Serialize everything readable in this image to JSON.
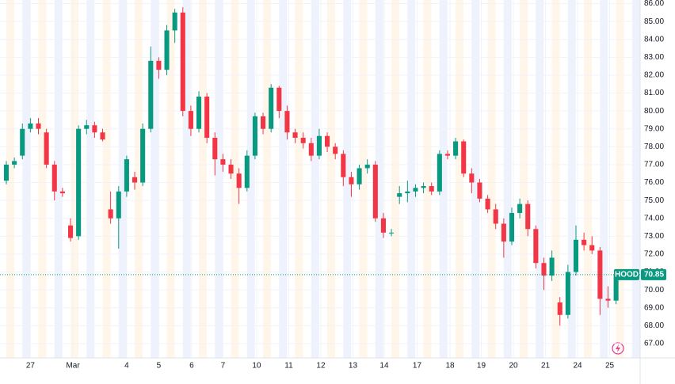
{
  "chart_data": {
    "type": "candlestick",
    "symbol": "HOOD",
    "last_price": {
      "value": 70.85,
      "label": "70.85"
    },
    "up_color": "#089981",
    "down_color": "#f23645",
    "x": [
      -3,
      -2,
      -1,
      0,
      1,
      2,
      3,
      4,
      5,
      6,
      7,
      8,
      9,
      10,
      11,
      12,
      13,
      14,
      15,
      16,
      17,
      18,
      19,
      20,
      21,
      22,
      23,
      24,
      25,
      26,
      27,
      28,
      29,
      30,
      31,
      32,
      33,
      34,
      35,
      36,
      37,
      38,
      39,
      40,
      41,
      42,
      43,
      44,
      45,
      46,
      47,
      48,
      49,
      50,
      51,
      52,
      53,
      54,
      55,
      56,
      57,
      58,
      59,
      60,
      61,
      62,
      63,
      64,
      65,
      66,
      67,
      68,
      69,
      70,
      71,
      72,
      73
    ],
    "open": [
      76.1,
      77.0,
      77.5,
      79.0,
      79.3,
      78.8,
      77.0,
      75.5,
      73.6,
      73.0,
      79.0,
      79.2,
      78.8,
      74.5,
      74.0,
      75.5,
      76.3,
      76.0,
      79.0,
      82.8,
      82.3,
      84.5,
      85.5,
      80.0,
      79.0,
      80.8,
      78.5,
      77.3,
      77.0,
      76.5,
      75.7,
      77.5,
      79.7,
      79.0,
      81.3,
      80.0,
      78.8,
      78.5,
      78.2,
      77.5,
      78.6,
      78.0,
      77.6,
      76.3,
      75.9,
      76.8,
      77.0,
      74.0,
      73.2,
      75.2,
      75.4,
      75.5,
      75.7,
      75.8,
      75.5,
      77.6,
      77.5,
      78.3,
      76.5,
      76.0,
      75.1,
      74.5,
      73.7,
      72.7,
      74.3,
      74.8,
      73.4,
      71.5,
      70.8,
      69.3,
      68.6,
      71.0,
      72.8,
      72.5,
      72.2,
      69.5,
      69.4
    ],
    "high": [
      77.2,
      77.4,
      79.3,
      79.6,
      79.6,
      79.0,
      77.2,
      75.7,
      74.0,
      79.2,
      79.5,
      79.4,
      79.0,
      75.5,
      75.8,
      77.5,
      76.6,
      79.3,
      83.6,
      83.0,
      84.8,
      85.7,
      85.8,
      80.3,
      81.1,
      81.0,
      78.8,
      77.6,
      77.3,
      76.8,
      77.8,
      79.9,
      79.9,
      81.5,
      81.4,
      80.3,
      79.0,
      78.8,
      78.5,
      79.0,
      78.8,
      78.2,
      77.8,
      76.6,
      77.0,
      77.3,
      77.2,
      74.3,
      73.4,
      75.8,
      76.1,
      75.9,
      76.0,
      76.0,
      77.8,
      77.8,
      78.5,
      78.4,
      76.8,
      76.2,
      75.3,
      74.8,
      74.0,
      74.6,
      75.1,
      75.0,
      73.6,
      71.8,
      72.2,
      69.6,
      71.4,
      73.6,
      73.2,
      73.0,
      72.4,
      70.2,
      71.0
    ],
    "low": [
      75.9,
      76.8,
      77.3,
      78.8,
      78.7,
      76.8,
      75.0,
      75.2,
      72.7,
      72.8,
      78.7,
      78.5,
      78.3,
      73.7,
      72.3,
      75.2,
      75.6,
      75.8,
      78.8,
      81.8,
      82.0,
      83.8,
      79.7,
      78.6,
      78.8,
      78.2,
      76.4,
      76.6,
      76.2,
      74.8,
      75.5,
      77.3,
      78.7,
      78.8,
      79.6,
      78.4,
      78.2,
      77.9,
      77.2,
      77.3,
      77.7,
      77.3,
      75.8,
      75.2,
      75.6,
      76.5,
      73.8,
      72.9,
      73.0,
      74.8,
      74.9,
      75.2,
      75.4,
      75.3,
      75.3,
      77.3,
      77.3,
      76.3,
      75.4,
      74.9,
      74.3,
      73.4,
      71.8,
      72.5,
      74.0,
      73.0,
      71.2,
      70.0,
      70.5,
      68.0,
      68.4,
      70.8,
      72.2,
      72.0,
      68.6,
      69.0,
      69.2
    ],
    "close": [
      77.0,
      77.2,
      79.0,
      79.3,
      79.0,
      77.0,
      75.5,
      75.4,
      72.9,
      79.0,
      79.2,
      78.8,
      78.4,
      74.0,
      75.5,
      77.3,
      76.0,
      79.0,
      82.8,
      82.3,
      84.5,
      85.5,
      80.0,
      79.0,
      80.8,
      78.5,
      77.3,
      77.0,
      76.5,
      75.7,
      77.5,
      79.7,
      79.0,
      81.3,
      80.0,
      78.8,
      78.5,
      78.2,
      77.5,
      78.6,
      78.0,
      77.6,
      76.3,
      75.9,
      76.8,
      77.0,
      74.0,
      73.2,
      73.2,
      75.4,
      75.5,
      75.7,
      75.8,
      75.5,
      77.6,
      77.5,
      78.3,
      76.5,
      76.0,
      75.1,
      74.5,
      73.7,
      72.7,
      74.3,
      74.8,
      73.4,
      71.5,
      70.8,
      71.8,
      68.6,
      71.0,
      72.8,
      72.5,
      72.2,
      69.5,
      69.4,
      70.85
    ],
    "xlim": [
      -3,
      76
    ],
    "xticks": [
      {
        "value": 0,
        "label": "27"
      },
      {
        "value": 5.3,
        "label": "Mar"
      },
      {
        "value": 12,
        "label": "4"
      },
      {
        "value": 16,
        "label": "5"
      },
      {
        "value": 20.1,
        "label": "6"
      },
      {
        "value": 24,
        "label": "7"
      },
      {
        "value": 28.2,
        "label": "10"
      },
      {
        "value": 32.2,
        "label": "11"
      },
      {
        "value": 36.2,
        "label": "12"
      },
      {
        "value": 40.2,
        "label": "13"
      },
      {
        "value": 44.1,
        "label": "14"
      },
      {
        "value": 48.2,
        "label": "17"
      },
      {
        "value": 52.3,
        "label": "18"
      },
      {
        "value": 56.2,
        "label": "19"
      },
      {
        "value": 60.2,
        "label": "20"
      },
      {
        "value": 64.2,
        "label": "21"
      },
      {
        "value": 68.2,
        "label": "24"
      },
      {
        "value": 72.2,
        "label": "25"
      }
    ],
    "ylim": [
      66.2,
      86.2
    ],
    "yticks": [
      {
        "value": 67,
        "label": "67.00"
      },
      {
        "value": 68,
        "label": "68.00"
      },
      {
        "value": 69,
        "label": "69.00"
      },
      {
        "value": 70,
        "label": "70.00"
      },
      {
        "value": 71,
        "label": "71.00"
      },
      {
        "value": 72,
        "label": "72.00"
      },
      {
        "value": 73,
        "label": "73.00"
      },
      {
        "value": 74,
        "label": "74.00"
      },
      {
        "value": 75,
        "label": "75.00"
      },
      {
        "value": 76,
        "label": "76.00"
      },
      {
        "value": 77,
        "label": "77.00"
      },
      {
        "value": 78,
        "label": "78.00"
      },
      {
        "value": 79,
        "label": "79.00"
      },
      {
        "value": 80,
        "label": "80.00"
      },
      {
        "value": 81,
        "label": "81.00"
      },
      {
        "value": 82,
        "label": "82.00"
      },
      {
        "value": 83,
        "label": "83.00"
      },
      {
        "value": 84,
        "label": "84.00"
      },
      {
        "value": 85,
        "label": "85.00"
      },
      {
        "value": 86,
        "label": "86.00"
      }
    ],
    "grid": true
  }
}
